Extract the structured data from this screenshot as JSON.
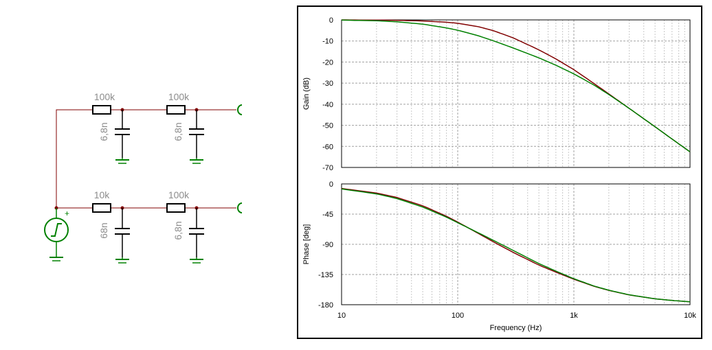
{
  "schematic": {
    "top_filter": {
      "r1": "100k",
      "r2": "100k",
      "c1": "6,8n",
      "c2": "6,8n"
    },
    "bottom_filter": {
      "r1": "10k",
      "r2": "100k",
      "c1": "68n",
      "c2": "6,8n"
    },
    "source_polarity": "+",
    "colors": {
      "wire": "#800000",
      "component": "#000000",
      "source": "#008000",
      "label": "#8c8c8c"
    }
  },
  "chart_data": [
    {
      "type": "line",
      "ylabel": "Gain (dB)",
      "xscale": "log",
      "xlim": [
        10,
        10000
      ],
      "ylim": [
        -70,
        0
      ],
      "x_ticks": [
        10,
        100,
        1000,
        10000
      ],
      "y_ticks": [
        0,
        -10,
        -20,
        -30,
        -40,
        -50,
        -60,
        -70
      ],
      "y_tick_labels": [
        "0",
        "-10",
        "-20",
        "-30",
        "-40",
        "-50",
        "-60",
        "-70"
      ],
      "grid": true,
      "series": [
        {
          "color": "#800000",
          "x": [
            10,
            20,
            30,
            50,
            80,
            100,
            150,
            200,
            300,
            500,
            700,
            1000,
            1500,
            2000,
            3000,
            5000,
            7000,
            10000
          ],
          "y": [
            0,
            -0.1,
            -0.2,
            -0.5,
            -1.1,
            -1.6,
            -3.2,
            -5,
            -8.5,
            -14.2,
            -18.5,
            -23.6,
            -30.3,
            -35.1,
            -42,
            -50.7,
            -56.5,
            -62.6
          ]
        },
        {
          "color": "#008000",
          "x": [
            10,
            20,
            30,
            50,
            80,
            100,
            150,
            200,
            300,
            500,
            700,
            1000,
            1500,
            2000,
            3000,
            5000,
            7000,
            10000
          ],
          "y": [
            -0.1,
            -0.4,
            -0.9,
            -2,
            -3.8,
            -4.9,
            -7.5,
            -9.8,
            -13.3,
            -18,
            -21.5,
            -25.6,
            -31,
            -35.4,
            -42,
            -50.7,
            -56.5,
            -62.6
          ]
        }
      ]
    },
    {
      "type": "line",
      "xlabel": "Frequency (Hz)",
      "ylabel": "Phase [deg]",
      "xscale": "log",
      "xlim": [
        10,
        10000
      ],
      "ylim": [
        -180,
        0
      ],
      "x_ticks": [
        10,
        100,
        1000,
        10000
      ],
      "x_tick_labels": [
        "10",
        "100",
        "1k",
        "10k"
      ],
      "y_ticks": [
        0,
        -45,
        -90,
        -135,
        -180
      ],
      "y_tick_labels": [
        "0",
        "-45",
        "-90",
        "-135",
        "-180"
      ],
      "grid": true,
      "series": [
        {
          "color": "#800000",
          "x": [
            10,
            20,
            30,
            50,
            80,
            100,
            150,
            200,
            300,
            500,
            700,
            1000,
            1500,
            2000,
            3000,
            5000,
            7000,
            10000
          ],
          "y": [
            -6.8,
            -13.6,
            -20.2,
            -32.5,
            -48.2,
            -56.8,
            -73.7,
            -85.7,
            -102,
            -121,
            -131.4,
            -142.1,
            -152.7,
            -158.7,
            -165.5,
            -171.2,
            -173.7,
            -175.6
          ]
        },
        {
          "color": "#008000",
          "x": [
            10,
            20,
            30,
            50,
            80,
            100,
            150,
            200,
            300,
            500,
            700,
            1000,
            1500,
            2000,
            3000,
            5000,
            7000,
            10000
          ],
          "y": [
            -7.5,
            -14.8,
            -21.8,
            -34.4,
            -49.5,
            -57.8,
            -72.7,
            -83.6,
            -99.1,
            -118.7,
            -129.9,
            -141.3,
            -152.3,
            -158.4,
            -165.3,
            -171.2,
            -173.7,
            -175.6
          ]
        }
      ]
    }
  ]
}
